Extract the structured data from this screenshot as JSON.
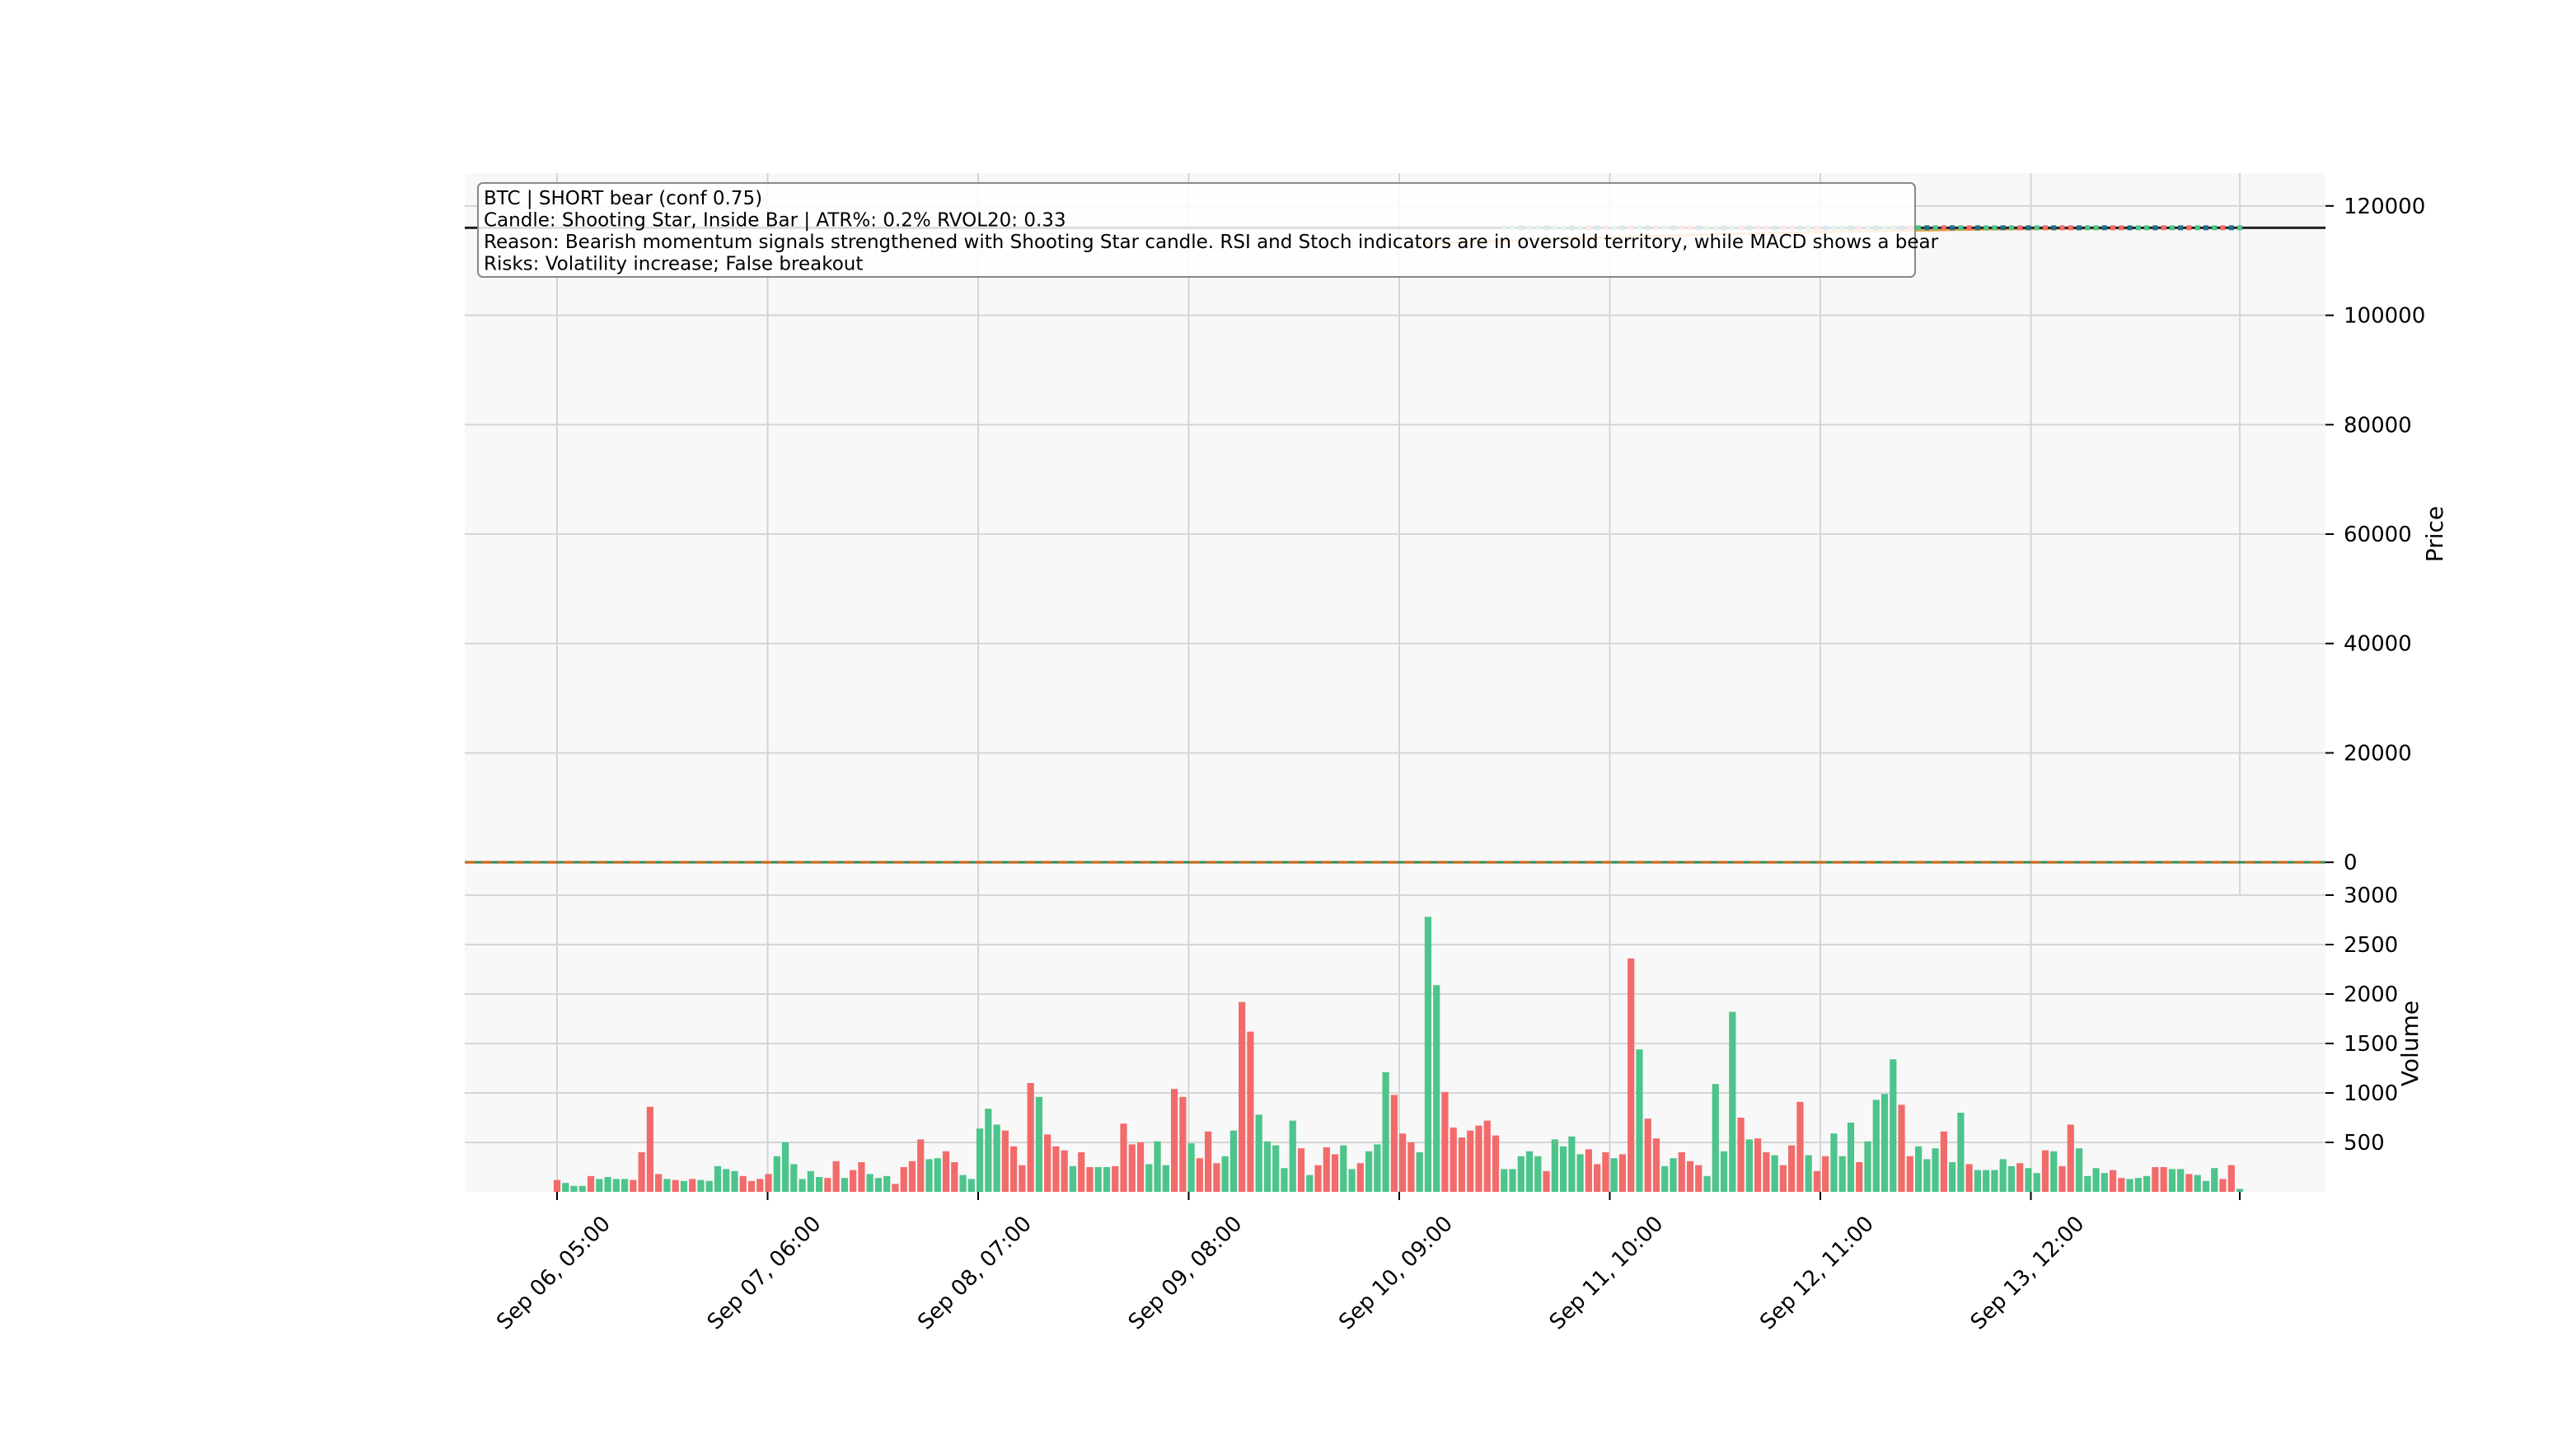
{
  "chart_data": {
    "type": "candlestick",
    "annotation": {
      "lines": [
        "BTC  |  SHORT  bear  (conf 0.75)",
        "Candle: Shooting Star, Inside Bar  |  ATR%: 0.2%  RVOL20: 0.33",
        "Reason: Bearish momentum signals strengthened with Shooting Star candle. RSI and Stoch indicators are in oversold territory, while MACD shows a bear",
        "Risks: Volatility increase; False breakout"
      ]
    },
    "x_tick_labels": [
      "Sep 06, 05:00",
      "Sep 07, 06:00",
      "Sep 08, 07:00",
      "Sep 09, 08:00",
      "Sep 10, 09:00",
      "Sep 11, 10:00",
      "Sep 12, 11:00",
      "Sep 13, 12:00"
    ],
    "price_panel": {
      "ylabel": "Price",
      "ylim": [
        -6000,
        126000
      ],
      "yticks": [
        0,
        20000,
        40000,
        60000,
        80000,
        100000,
        120000
      ],
      "ytick_labels": [
        "0",
        "20000",
        "40000",
        "60000",
        "80000",
        "100000",
        "120000"
      ],
      "reference_level": 116000,
      "zero_line": 0,
      "ma_start": 113000,
      "ma_end": 116000,
      "grid": true
    },
    "volume_panel": {
      "ylabel": "Volume",
      "ylim": [
        0,
        3000
      ],
      "yticks": [
        500,
        1000,
        1500,
        2000,
        2500,
        3000
      ],
      "ytick_labels": [
        "500",
        "1000",
        "1500",
        "2000",
        "2500",
        "3000"
      ],
      "grid": true,
      "bars": [
        {
          "v": 120,
          "d": "down"
        },
        {
          "v": 90,
          "d": "up"
        },
        {
          "v": 60,
          "d": "up"
        },
        {
          "v": 60,
          "d": "up"
        },
        {
          "v": 160,
          "d": "down"
        },
        {
          "v": 130,
          "d": "up"
        },
        {
          "v": 150,
          "d": "up"
        },
        {
          "v": 130,
          "d": "up"
        },
        {
          "v": 130,
          "d": "up"
        },
        {
          "v": 120,
          "d": "down"
        },
        {
          "v": 400,
          "d": "down"
        },
        {
          "v": 860,
          "d": "down"
        },
        {
          "v": 180,
          "d": "down"
        },
        {
          "v": 130,
          "d": "up"
        },
        {
          "v": 120,
          "d": "down"
        },
        {
          "v": 110,
          "d": "up"
        },
        {
          "v": 130,
          "d": "down"
        },
        {
          "v": 120,
          "d": "up"
        },
        {
          "v": 110,
          "d": "up"
        },
        {
          "v": 260,
          "d": "up"
        },
        {
          "v": 230,
          "d": "up"
        },
        {
          "v": 210,
          "d": "up"
        },
        {
          "v": 160,
          "d": "down"
        },
        {
          "v": 110,
          "d": "down"
        },
        {
          "v": 130,
          "d": "down"
        },
        {
          "v": 180,
          "d": "down"
        },
        {
          "v": 360,
          "d": "up"
        },
        {
          "v": 500,
          "d": "up"
        },
        {
          "v": 280,
          "d": "up"
        },
        {
          "v": 130,
          "d": "up"
        },
        {
          "v": 210,
          "d": "up"
        },
        {
          "v": 150,
          "d": "up"
        },
        {
          "v": 140,
          "d": "down"
        },
        {
          "v": 310,
          "d": "down"
        },
        {
          "v": 140,
          "d": "up"
        },
        {
          "v": 220,
          "d": "down"
        },
        {
          "v": 300,
          "d": "down"
        },
        {
          "v": 180,
          "d": "up"
        },
        {
          "v": 140,
          "d": "up"
        },
        {
          "v": 160,
          "d": "up"
        },
        {
          "v": 80,
          "d": "down"
        },
        {
          "v": 250,
          "d": "down"
        },
        {
          "v": 310,
          "d": "down"
        },
        {
          "v": 530,
          "d": "down"
        },
        {
          "v": 330,
          "d": "up"
        },
        {
          "v": 340,
          "d": "up"
        },
        {
          "v": 410,
          "d": "down"
        },
        {
          "v": 300,
          "d": "down"
        },
        {
          "v": 170,
          "d": "up"
        },
        {
          "v": 130,
          "d": "up"
        },
        {
          "v": 640,
          "d": "up"
        },
        {
          "v": 840,
          "d": "up"
        },
        {
          "v": 680,
          "d": "up"
        },
        {
          "v": 620,
          "d": "down"
        },
        {
          "v": 460,
          "d": "down"
        },
        {
          "v": 270,
          "d": "down"
        },
        {
          "v": 1100,
          "d": "down"
        },
        {
          "v": 960,
          "d": "up"
        },
        {
          "v": 580,
          "d": "down"
        },
        {
          "v": 460,
          "d": "down"
        },
        {
          "v": 420,
          "d": "down"
        },
        {
          "v": 260,
          "d": "up"
        },
        {
          "v": 400,
          "d": "down"
        },
        {
          "v": 250,
          "d": "down"
        },
        {
          "v": 250,
          "d": "up"
        },
        {
          "v": 250,
          "d": "up"
        },
        {
          "v": 260,
          "d": "down"
        },
        {
          "v": 690,
          "d": "down"
        },
        {
          "v": 480,
          "d": "down"
        },
        {
          "v": 500,
          "d": "down"
        },
        {
          "v": 280,
          "d": "up"
        },
        {
          "v": 510,
          "d": "up"
        },
        {
          "v": 270,
          "d": "up"
        },
        {
          "v": 1040,
          "d": "down"
        },
        {
          "v": 960,
          "d": "down"
        },
        {
          "v": 490,
          "d": "up"
        },
        {
          "v": 340,
          "d": "down"
        },
        {
          "v": 610,
          "d": "down"
        },
        {
          "v": 290,
          "d": "down"
        },
        {
          "v": 360,
          "d": "up"
        },
        {
          "v": 620,
          "d": "up"
        },
        {
          "v": 1920,
          "d": "down"
        },
        {
          "v": 1620,
          "d": "down"
        },
        {
          "v": 780,
          "d": "up"
        },
        {
          "v": 510,
          "d": "up"
        },
        {
          "v": 470,
          "d": "up"
        },
        {
          "v": 240,
          "d": "up"
        },
        {
          "v": 720,
          "d": "up"
        },
        {
          "v": 440,
          "d": "down"
        },
        {
          "v": 170,
          "d": "up"
        },
        {
          "v": 270,
          "d": "down"
        },
        {
          "v": 450,
          "d": "down"
        },
        {
          "v": 380,
          "d": "down"
        },
        {
          "v": 470,
          "d": "up"
        },
        {
          "v": 230,
          "d": "up"
        },
        {
          "v": 290,
          "d": "down"
        },
        {
          "v": 410,
          "d": "up"
        },
        {
          "v": 480,
          "d": "up"
        },
        {
          "v": 1210,
          "d": "up"
        },
        {
          "v": 980,
          "d": "down"
        },
        {
          "v": 590,
          "d": "down"
        },
        {
          "v": 500,
          "d": "down"
        },
        {
          "v": 400,
          "d": "up"
        },
        {
          "v": 2780,
          "d": "up"
        },
        {
          "v": 2090,
          "d": "up"
        },
        {
          "v": 1010,
          "d": "down"
        },
        {
          "v": 650,
          "d": "down"
        },
        {
          "v": 550,
          "d": "down"
        },
        {
          "v": 620,
          "d": "down"
        },
        {
          "v": 670,
          "d": "down"
        },
        {
          "v": 720,
          "d": "down"
        },
        {
          "v": 570,
          "d": "down"
        },
        {
          "v": 230,
          "d": "up"
        },
        {
          "v": 230,
          "d": "up"
        },
        {
          "v": 360,
          "d": "up"
        },
        {
          "v": 410,
          "d": "up"
        },
        {
          "v": 360,
          "d": "up"
        },
        {
          "v": 210,
          "d": "down"
        },
        {
          "v": 530,
          "d": "up"
        },
        {
          "v": 460,
          "d": "up"
        },
        {
          "v": 560,
          "d": "up"
        },
        {
          "v": 380,
          "d": "up"
        },
        {
          "v": 430,
          "d": "down"
        },
        {
          "v": 280,
          "d": "down"
        },
        {
          "v": 400,
          "d": "down"
        },
        {
          "v": 340,
          "d": "up"
        },
        {
          "v": 380,
          "d": "down"
        },
        {
          "v": 2360,
          "d": "down"
        },
        {
          "v": 1440,
          "d": "up"
        },
        {
          "v": 740,
          "d": "down"
        },
        {
          "v": 540,
          "d": "down"
        },
        {
          "v": 260,
          "d": "up"
        },
        {
          "v": 340,
          "d": "up"
        },
        {
          "v": 400,
          "d": "down"
        },
        {
          "v": 310,
          "d": "down"
        },
        {
          "v": 270,
          "d": "down"
        },
        {
          "v": 160,
          "d": "up"
        },
        {
          "v": 1090,
          "d": "up"
        },
        {
          "v": 410,
          "d": "up"
        },
        {
          "v": 1820,
          "d": "up"
        },
        {
          "v": 750,
          "d": "down"
        },
        {
          "v": 530,
          "d": "up"
        },
        {
          "v": 540,
          "d": "down"
        },
        {
          "v": 400,
          "d": "down"
        },
        {
          "v": 370,
          "d": "up"
        },
        {
          "v": 270,
          "d": "down"
        },
        {
          "v": 470,
          "d": "down"
        },
        {
          "v": 910,
          "d": "down"
        },
        {
          "v": 370,
          "d": "up"
        },
        {
          "v": 210,
          "d": "down"
        },
        {
          "v": 360,
          "d": "down"
        },
        {
          "v": 590,
          "d": "up"
        },
        {
          "v": 360,
          "d": "up"
        },
        {
          "v": 700,
          "d": "up"
        },
        {
          "v": 300,
          "d": "down"
        },
        {
          "v": 510,
          "d": "up"
        },
        {
          "v": 930,
          "d": "up"
        },
        {
          "v": 990,
          "d": "up"
        },
        {
          "v": 1340,
          "d": "up"
        },
        {
          "v": 880,
          "d": "down"
        },
        {
          "v": 360,
          "d": "down"
        },
        {
          "v": 460,
          "d": "up"
        },
        {
          "v": 330,
          "d": "up"
        },
        {
          "v": 440,
          "d": "up"
        },
        {
          "v": 610,
          "d": "down"
        },
        {
          "v": 300,
          "d": "up"
        },
        {
          "v": 800,
          "d": "up"
        },
        {
          "v": 280,
          "d": "down"
        },
        {
          "v": 220,
          "d": "up"
        },
        {
          "v": 220,
          "d": "up"
        },
        {
          "v": 220,
          "d": "up"
        },
        {
          "v": 330,
          "d": "up"
        },
        {
          "v": 260,
          "d": "up"
        },
        {
          "v": 290,
          "d": "down"
        },
        {
          "v": 240,
          "d": "up"
        },
        {
          "v": 190,
          "d": "up"
        },
        {
          "v": 420,
          "d": "down"
        },
        {
          "v": 410,
          "d": "up"
        },
        {
          "v": 260,
          "d": "down"
        },
        {
          "v": 680,
          "d": "down"
        },
        {
          "v": 440,
          "d": "up"
        },
        {
          "v": 160,
          "d": "up"
        },
        {
          "v": 240,
          "d": "up"
        },
        {
          "v": 190,
          "d": "up"
        },
        {
          "v": 220,
          "d": "down"
        },
        {
          "v": 140,
          "d": "down"
        },
        {
          "v": 130,
          "d": "up"
        },
        {
          "v": 140,
          "d": "up"
        },
        {
          "v": 160,
          "d": "up"
        },
        {
          "v": 250,
          "d": "down"
        },
        {
          "v": 250,
          "d": "down"
        },
        {
          "v": 230,
          "d": "up"
        },
        {
          "v": 230,
          "d": "up"
        },
        {
          "v": 180,
          "d": "down"
        },
        {
          "v": 170,
          "d": "up"
        },
        {
          "v": 110,
          "d": "up"
        },
        {
          "v": 240,
          "d": "up"
        },
        {
          "v": 130,
          "d": "down"
        },
        {
          "v": 270,
          "d": "down"
        },
        {
          "v": 30,
          "d": "up"
        }
      ]
    }
  },
  "colors": {
    "up": "#4dc48b",
    "down": "#f26b6b",
    "axes_background": "#f8f8f8",
    "grid": "#d5d5d5",
    "moving_average": "#f0a13c",
    "zero_line_a": "#2e8b57",
    "zero_line_b": "#d2691e",
    "reference_line": "#222222"
  }
}
